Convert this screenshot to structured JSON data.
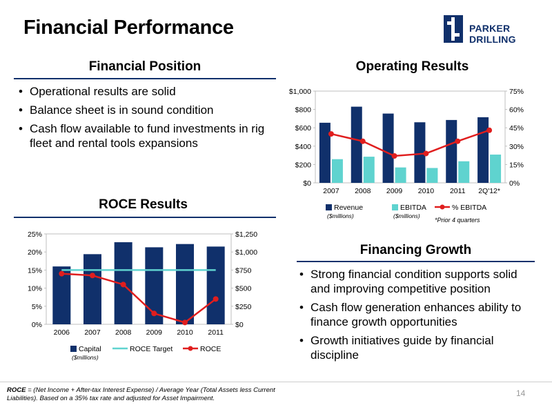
{
  "slide": {
    "title": "Financial Performance",
    "logo_text": "PARKER DRILLING",
    "page_number": "14"
  },
  "financial_position": {
    "heading": "Financial Position",
    "bullets": [
      "Operational results are solid",
      "Balance sheet is in sound condition",
      "Cash flow available to fund investments in rig fleet  and rental tools expansions"
    ]
  },
  "financing_growth": {
    "heading": "Financing Growth",
    "bullets": [
      "Strong financial condition supports solid and improving competitive position",
      "Cash flow generation enhances ability to finance growth opportunities",
      "Growth initiatives guide by financial discipline"
    ]
  },
  "footnote": {
    "label": "ROCE",
    "text": " = (Net Income + After-tax Interest Expense) / Average Year (Total Assets less Current Liabilities).  Based on a 35% tax rate and adjusted for Asset Impairment."
  },
  "colors": {
    "navy": "#10306b",
    "teal": "#5fd3cf",
    "red": "#e01e1e"
  },
  "chart_data": [
    {
      "type": "bar",
      "title": "Operating Results",
      "categories": [
        "2007",
        "2008",
        "2009",
        "2010",
        "2011",
        "2Q'12*"
      ],
      "series": [
        {
          "name": "Revenue",
          "unit_note": "($millions)",
          "axis": "left",
          "kind": "bar",
          "values": [
            655,
            830,
            755,
            660,
            685,
            715
          ]
        },
        {
          "name": "EBITDA",
          "unit_note": "($millions)",
          "axis": "left",
          "kind": "bar",
          "values": [
            258,
            285,
            168,
            162,
            235,
            308
          ]
        },
        {
          "name": "% EBITDA",
          "axis": "right",
          "kind": "line",
          "values": [
            40,
            34,
            22,
            24,
            34,
            43
          ]
        }
      ],
      "y_left": {
        "ticks": [
          "$0",
          "$200",
          "$400",
          "$600",
          "$800",
          "$1,000"
        ],
        "range": [
          0,
          1000
        ]
      },
      "y_right": {
        "ticks": [
          "0%",
          "15%",
          "30%",
          "45%",
          "60%",
          "75%"
        ],
        "range": [
          0,
          75
        ]
      },
      "annotation": "*Prior 4 quarters",
      "legend_position": "bottom"
    },
    {
      "type": "bar",
      "title": "ROCE Results",
      "categories": [
        "2006",
        "2007",
        "2008",
        "2009",
        "2010",
        "2011"
      ],
      "series": [
        {
          "name": "Capital",
          "unit_note": "($millions)",
          "axis": "right",
          "kind": "bar",
          "values": [
            800,
            970,
            1135,
            1065,
            1110,
            1075
          ]
        },
        {
          "name": "ROCE Target",
          "axis": "left",
          "kind": "line",
          "values": [
            15,
            15,
            15,
            15,
            15,
            15
          ]
        },
        {
          "name": "ROCE",
          "axis": "left",
          "kind": "line",
          "values": [
            14,
            13.5,
            11,
            3,
            0.5,
            7
          ]
        }
      ],
      "y_left": {
        "ticks": [
          "0%",
          "5%",
          "10%",
          "15%",
          "20%",
          "25%"
        ],
        "range": [
          0,
          25
        ]
      },
      "y_right": {
        "ticks": [
          "$0",
          "$250",
          "$500",
          "$750",
          "$1,000",
          "$1,250"
        ],
        "range": [
          0,
          1250
        ]
      },
      "legend_position": "bottom"
    }
  ]
}
